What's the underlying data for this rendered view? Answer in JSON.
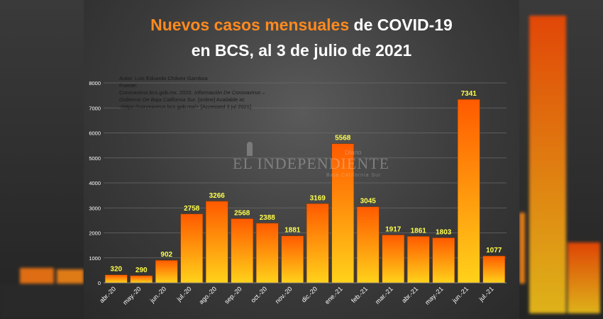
{
  "header": {
    "title_highlight": "Nuevos casos mensuales",
    "title_rest": "de COVID-19",
    "subtitle": "en BCS, al 3 de julio de 2021"
  },
  "source": {
    "author": "Autor: Luis Eduardo Chávez Gamboa",
    "label": "Fuente:",
    "line1_plain": "Coronavirus.bcs.gob.mx. 2020. ",
    "line1_italic": "Información De Coronavirus –",
    "line2_italic": "Gobierno De Baja California Sur.",
    "line2_plain": " [online] Available at:",
    "line3": "<https://coronavirus.bcs.gob.mx/> [Accessed 3 jul 2021]"
  },
  "watermark": {
    "name": "EL INDEPENDIENTE",
    "tag": "Diario",
    "region": "Baja California Sur"
  },
  "colors": {
    "bar_top": "#ff5a00",
    "bar_bottom": "#ffd21a",
    "label": "#ffff4d",
    "axis_text": "#ffffff",
    "grid": "#6a6a6a"
  },
  "chart_data": {
    "type": "bar",
    "categories": [
      "abr.-20",
      "may.-20",
      "jun.-20",
      "jul.-20",
      "ago.-20",
      "sep.-20",
      "oct.-20",
      "nov.-20",
      "dic.-20",
      "ene.-21",
      "feb.-21",
      "mar.-21",
      "abr.-21",
      "may.-21",
      "jun.-21",
      "jul.-21"
    ],
    "values": [
      320,
      290,
      902,
      2758,
      3266,
      2568,
      2388,
      1881,
      3169,
      5568,
      3045,
      1917,
      1861,
      1803,
      7341,
      1077
    ],
    "ylim": [
      0,
      8000
    ],
    "yticks": [
      0,
      1000,
      2000,
      3000,
      4000,
      5000,
      6000,
      7000,
      8000
    ],
    "grid": true,
    "data_labels": true
  }
}
